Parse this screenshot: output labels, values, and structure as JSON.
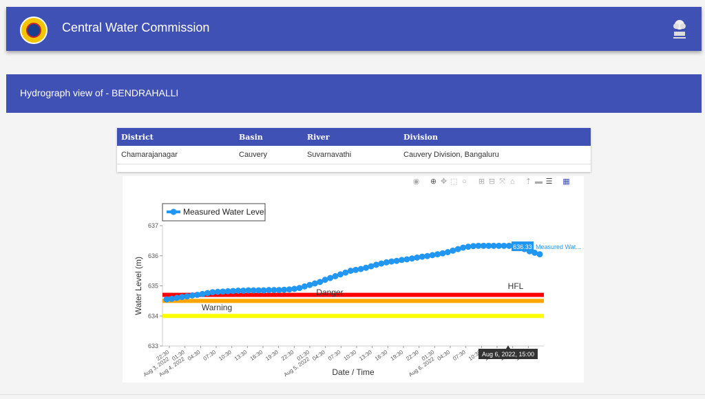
{
  "header": {
    "title": "Central Water Commission",
    "logo_icon": "cwc-logo-icon",
    "emblem_icon": "national-emblem-icon"
  },
  "subheader": {
    "title": "Hydrograph view of - BENDRAHALLI"
  },
  "station_table": {
    "headers": [
      "District",
      "Basin",
      "River",
      "Division"
    ],
    "row": [
      "Chamarajanagar",
      "Cauvery",
      "Suvarnavathi",
      "Cauvery Division, Bangaluru"
    ]
  },
  "chart_data": {
    "type": "line",
    "legend": "Measured Water Level",
    "xlabel": "Date / Time",
    "ylabel": "Water Level (m)",
    "ylim": [
      633,
      637
    ],
    "yticks": [
      "633",
      "634",
      "635",
      "636",
      "637"
    ],
    "xticks": [
      "22:30",
      "01:30",
      "04:30",
      "07:30",
      "10:30",
      "13:30",
      "16:30",
      "19:30",
      "22:30",
      "01:30",
      "04:30",
      "07:30",
      "10:30",
      "13:30",
      "16:30",
      "19:30",
      "22:30",
      "01:30",
      "04:30",
      "07:30",
      "10:30",
      "13:30",
      "16:30",
      "19:30"
    ],
    "date_labels": [
      "Aug 3, 2022",
      "Aug 4, 2022",
      "Aug 5, 2022",
      "Aug 6, 2022"
    ],
    "levels": [
      {
        "name": "HFL",
        "value": 634.7,
        "color": "#ff0000"
      },
      {
        "name": "Danger",
        "value": 634.5,
        "color": "#ffa500"
      },
      {
        "name": "Warning",
        "value": 634.0,
        "color": "#ffff00"
      }
    ],
    "series": [
      {
        "name": "Measured Water Level",
        "color": "#2196f3",
        "values": [
          634.55,
          634.57,
          634.6,
          634.63,
          634.65,
          634.68,
          634.7,
          634.73,
          634.76,
          634.79,
          634.8,
          634.81,
          634.82,
          634.83,
          634.84,
          634.84,
          634.85,
          634.85,
          634.85,
          634.85,
          634.86,
          634.86,
          634.86,
          634.87,
          634.88,
          634.9,
          634.93,
          634.98,
          635.03,
          635.08,
          635.13,
          635.2,
          635.26,
          635.32,
          635.38,
          635.44,
          635.5,
          635.53,
          635.56,
          635.6,
          635.65,
          635.7,
          635.74,
          635.78,
          635.81,
          635.83,
          635.86,
          635.88,
          635.91,
          635.94,
          635.97,
          635.99,
          636.02,
          636.05,
          636.08,
          636.12,
          636.17,
          636.22,
          636.27,
          636.3,
          636.32,
          636.33,
          636.33,
          636.33,
          636.33,
          636.33,
          636.33,
          636.33,
          636.33,
          636.33,
          636.22,
          636.15,
          636.1,
          636.05
        ]
      }
    ],
    "hover": {
      "value_label": "636.33",
      "series_label": "Measured Wat...",
      "date_label": "Aug 6, 2022, 15:00"
    }
  }
}
